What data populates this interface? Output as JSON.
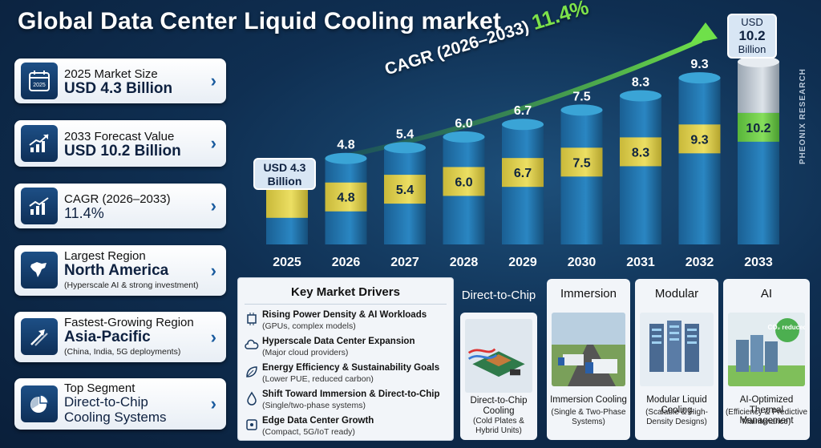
{
  "title": "Global Data Center Liquid Cooling market",
  "cards": [
    {
      "label": "2025 Market Size",
      "value": "USD 4.3 Billion",
      "note": "",
      "icon": "calendar-icon",
      "icon_text": "2025"
    },
    {
      "label": "2033 Forecast Value",
      "value": "USD 10.2 Billion",
      "note": "",
      "icon": "growth-chart-icon"
    },
    {
      "label": "CAGR (2026–2033)",
      "value": "11.4%",
      "note": "",
      "icon": "trend-chart-icon"
    },
    {
      "label": "Largest Region",
      "value": "North America",
      "note": "(Hyperscale AI & strong investment)",
      "icon": "map-icon"
    },
    {
      "label": "Fastest-Growing Region",
      "value": "Asia-Pacific",
      "note": "(China, India, 5G deployments)",
      "icon": "arrows-up-icon"
    },
    {
      "label": "Top Segment",
      "value": "Direct-to-Chip",
      "value2": "Cooling Systems",
      "note": "",
      "icon": "pie-chart-icon"
    }
  ],
  "chart_data": {
    "type": "bar",
    "categories": [
      "2025",
      "2026",
      "2027",
      "2028",
      "2029",
      "2030",
      "2031",
      "2032",
      "2033"
    ],
    "values": [
      4.3,
      4.8,
      5.4,
      6.0,
      6.7,
      7.5,
      8.3,
      9.3,
      10.2
    ],
    "top_labels": [
      "",
      "4.8",
      "5.4",
      "6.0",
      "6.7",
      "7.5",
      "8.3",
      "9.3",
      ""
    ],
    "band_labels": [
      "",
      "4.8",
      "5.4",
      "6.0",
      "6.7",
      "7.5",
      "8.3",
      "9.3",
      "10.2"
    ],
    "unit": "USD Billion",
    "ylim": [
      0,
      10.2
    ],
    "grid": false,
    "colors": {
      "bar": "#1f6fa8",
      "band": "#e0d24a",
      "band_last": "#6fcf4a",
      "cap_last": "#b9c3cc"
    }
  },
  "callout_start": {
    "line1": "USD 4.3",
    "line2": "Billion"
  },
  "callout_end": {
    "line1": "USD",
    "line2": "10.2",
    "line3": "Billion"
  },
  "cagr_text": "CAGR (2026–2033)",
  "cagr_value": "11.4%",
  "drivers": {
    "heading": "Key Market Drivers",
    "items": [
      {
        "title": "Rising Power Density & AI Workloads",
        "sub": "(GPUs, complex models)",
        "icon": "chip-icon"
      },
      {
        "title": "Hyperscale Data Center Expansion",
        "sub": "(Major cloud providers)",
        "icon": "cloud-icon"
      },
      {
        "title": "Energy Efficiency & Sustainability Goals",
        "sub": "(Lower PUE, reduced carbon)",
        "icon": "leaf-icon"
      },
      {
        "title": "Shift Toward Immersion & Direct-to-Chip",
        "sub": "(Single/two-phase systems)",
        "icon": "droplet-icon"
      },
      {
        "title": "Edge Data Center Growth",
        "sub": "(Compact, 5G/IoT ready)",
        "icon": "edge-icon"
      }
    ]
  },
  "segments": [
    {
      "title": "Direct-to-Chip",
      "caption1": "Direct-to-Chip Cooling",
      "caption2": "(Cold Plates & Hybrid Units)"
    },
    {
      "title": "Immersion",
      "caption1": "Immersion Cooling",
      "caption2": "(Single & Two-Phase Systems)"
    },
    {
      "title": "Modular",
      "caption1": "Modular Liquid Cooling",
      "caption2": "(Scalable & High-Density Designs)"
    },
    {
      "title": "AI",
      "caption1": "AI-Optimized Thermal Management",
      "caption2": "(Efficiency & Predictive Maintenance)",
      "badge": "CO₂ reduced"
    }
  ],
  "watermark": "PHEONIX RESEARCH"
}
